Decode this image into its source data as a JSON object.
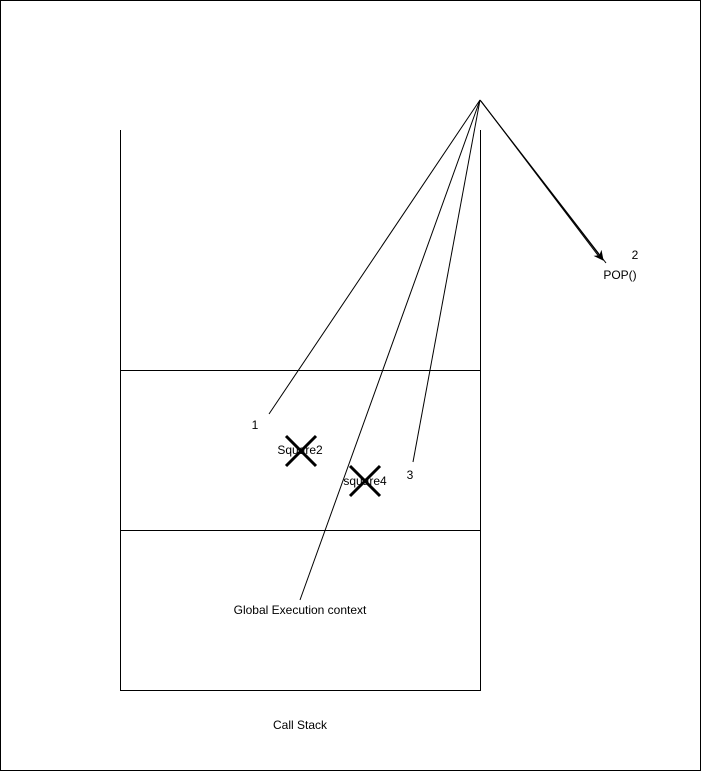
{
  "diagram": {
    "title": "Call Stack",
    "frames": {
      "global": "Global Execution context",
      "square2": "Square2",
      "square4": "square4"
    },
    "operation": "POP()",
    "step_labels": [
      "1",
      "2",
      "3"
    ]
  },
  "colors": {
    "stroke": "#000000",
    "background": "#ffffff"
  }
}
